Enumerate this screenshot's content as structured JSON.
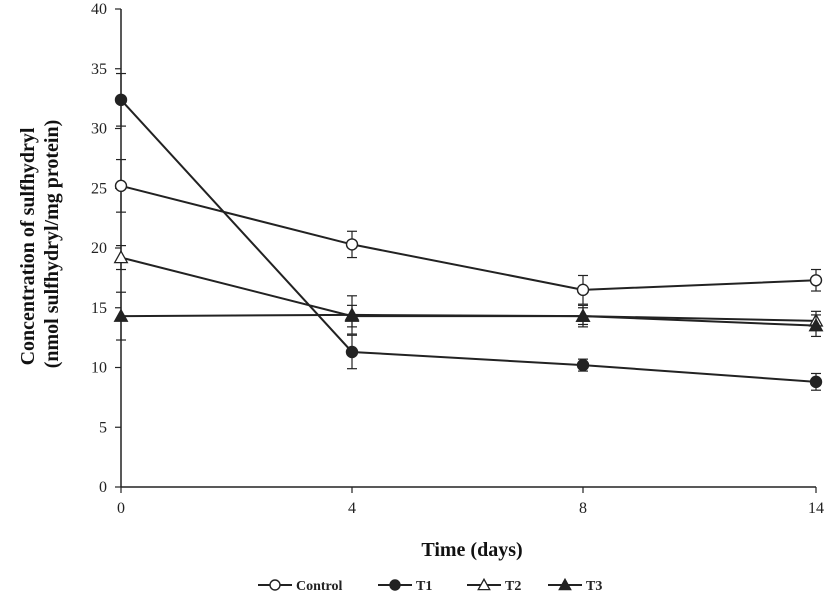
{
  "chart_data": {
    "type": "line",
    "xlabel": "Time (days)",
    "ylabel": [
      "Concentration of sulfhydryl",
      "(nmol sulfhydryl/mg protein)"
    ],
    "x": [
      "0",
      "4",
      "8",
      "14"
    ],
    "ylim": [
      0,
      40
    ],
    "yticks": [
      0,
      5,
      10,
      15,
      20,
      25,
      30,
      35,
      40
    ],
    "grid": false,
    "legend_position": "bottom",
    "series": [
      {
        "name": "Control",
        "marker": "open-circle",
        "values": [
          25.2,
          20.3,
          16.5,
          17.3
        ],
        "errors": [
          2.2,
          1.1,
          1.2,
          0.9
        ]
      },
      {
        "name": "T1",
        "marker": "filled-circle",
        "values": [
          32.4,
          11.3,
          10.2,
          8.8
        ],
        "errors": [
          2.2,
          1.4,
          0.5,
          0.7
        ]
      },
      {
        "name": "T2",
        "marker": "open-triangle",
        "values": [
          19.2,
          14.3,
          14.3,
          13.9
        ],
        "errors": [
          1.0,
          0.9,
          0.7,
          0.8
        ]
      },
      {
        "name": "T3",
        "marker": "filled-triangle",
        "values": [
          14.3,
          14.4,
          14.3,
          13.5
        ],
        "errors": [
          2.0,
          1.6,
          0.9,
          0.9
        ]
      }
    ],
    "line_color": "#222222"
  }
}
